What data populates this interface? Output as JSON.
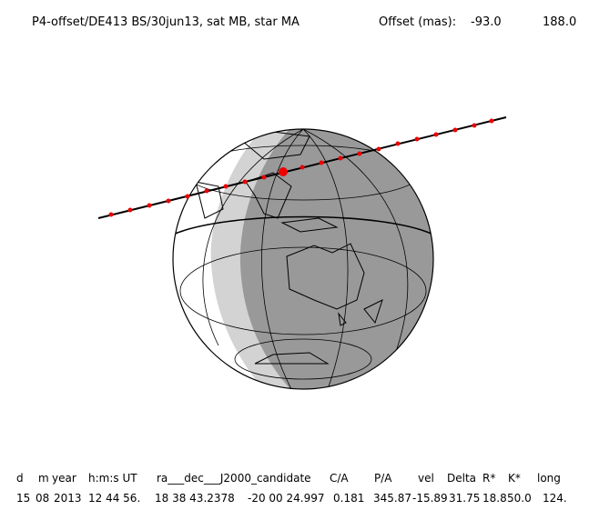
{
  "header": {
    "title": "P4-offset/DE413 BS/30jun13, sat MB, star MA",
    "offset_label": "Offset (mas):",
    "offset_values": [
      "-93.0",
      "188.0"
    ]
  },
  "table": {
    "headers": [
      "d",
      "m",
      "year",
      "h:m:s UT",
      "ra___dec___J2000_candidate",
      "C/A",
      "P/A",
      "vel",
      "Delta",
      "R*",
      "K*",
      "long"
    ],
    "row": [
      "15",
      "08",
      "2013",
      "12 44 56.",
      "18 38 43.2378",
      "-20 00 24.997",
      "0.181",
      "345.87",
      "-15.89",
      "31.75",
      "18.8",
      "50.0",
      "124."
    ]
  }
}
